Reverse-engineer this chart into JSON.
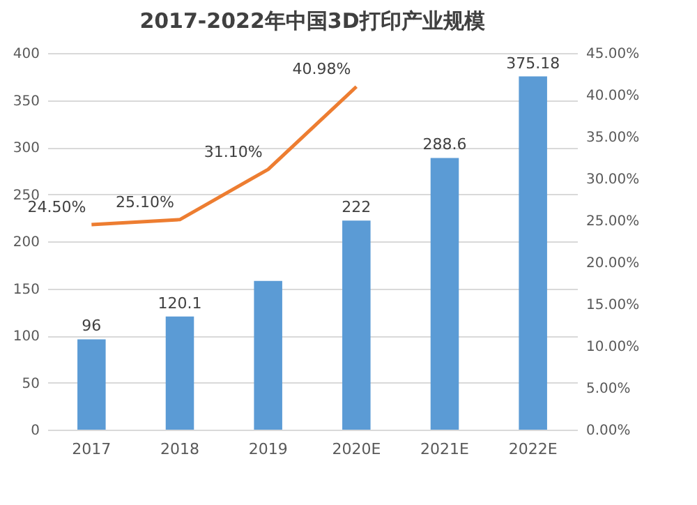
{
  "chart_data": {
    "type": "bar",
    "title": "2017-2022年中国3D打印产业规模",
    "categories": [
      "2017",
      "2018",
      "2019",
      "2020E",
      "2021E",
      "2022E"
    ],
    "series": [
      {
        "color": "#5b9bd5",
        "values": [
          96,
          120.1,
          158,
          222,
          288.6,
          375.18
        ],
        "value_labels": [
          "96",
          "120.1",
          null,
          "222",
          "288.6",
          "375.18"
        ]
      },
      {
        "type": "line",
        "axis": "y2",
        "color": "#ed7d31",
        "values": [
          24.5,
          25.1,
          31.1,
          40.98,
          null,
          null
        ],
        "value_labels": [
          "24.50%",
          "25.10%",
          "31.10%",
          "40.98%",
          null,
          null
        ]
      }
    ],
    "ylim": [
      0,
      400
    ],
    "yticks": [
      0,
      50,
      100,
      150,
      200,
      250,
      300,
      350,
      400
    ],
    "y2lim": [
      0,
      45
    ],
    "y2ticks": [
      {
        "value": 0,
        "label": "0.00%"
      },
      {
        "value": 5,
        "label": "5.00%"
      },
      {
        "value": 10,
        "label": "10.00%"
      },
      {
        "value": 15,
        "label": "15.00%"
      },
      {
        "value": 20,
        "label": "20.00%"
      },
      {
        "value": 25,
        "label": "25.00%"
      },
      {
        "value": 30,
        "label": "30.00%"
      },
      {
        "value": 35,
        "label": "35.00%"
      },
      {
        "value": 40,
        "label": "40.00%"
      },
      {
        "value": 45,
        "label": "45.00%"
      }
    ],
    "grid": "y",
    "marker": "none",
    "line_style": "solid"
  }
}
